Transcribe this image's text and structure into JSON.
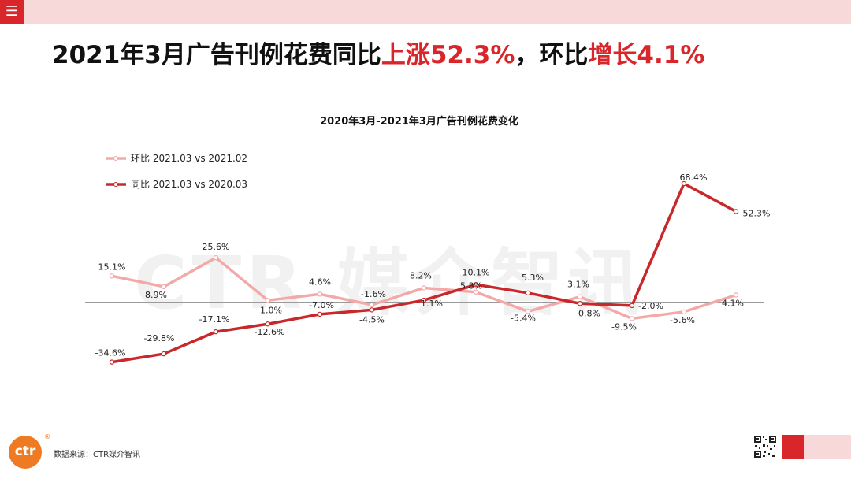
{
  "header": {
    "menu_icon": "hamburger-menu-icon",
    "menu_glyph": "☰"
  },
  "headline": {
    "part1": "2021年3月广告刊例花费同比",
    "part2": "上涨52.3%",
    "part3": "，环比",
    "part4": "增长4.1%"
  },
  "watermark": "CTR 媒介智讯",
  "footer": {
    "logo_text": "ctr",
    "logo_reg": "®",
    "source": "数据来源：CTR媒介智讯"
  },
  "colors": {
    "accent": "#d9262a",
    "mom_line": "#f4a9a9",
    "yoy_line": "#c8282a",
    "header_bar": "#f7d9d9"
  },
  "chart_data": {
    "type": "line",
    "title": "2020年3月-2021年3月广告刊例花费变化",
    "legend_position": "top-left",
    "grid": false,
    "x_points": 13,
    "ylim": [
      -40,
      75
    ],
    "series": [
      {
        "name": "环比 2021.03 vs 2021.02",
        "values": [
          15.1,
          8.9,
          25.6,
          1.0,
          4.6,
          -1.6,
          8.2,
          5.8,
          -5.4,
          3.1,
          -9.5,
          -5.6,
          4.1
        ],
        "labels": [
          "15.1%",
          "8.9%",
          "25.6%",
          "1.0%",
          "4.6%",
          "-1.6%",
          "8.2%",
          "5.8%",
          "-5.4%",
          "3.1%",
          "-9.5%",
          "-5.6%",
          "4.1%"
        ]
      },
      {
        "name": "同比 2021.03 vs 2020.03",
        "values": [
          -34.6,
          -29.8,
          -17.1,
          -12.6,
          -7.0,
          -4.5,
          1.1,
          10.1,
          5.3,
          -0.8,
          -2.0,
          68.4,
          52.3
        ],
        "labels": [
          "-34.6%",
          "-29.8%",
          "-17.1%",
          "-12.6%",
          "-7.0%",
          "-4.5%",
          "1.1%",
          "10.1%",
          "5.3%",
          "-0.8%",
          "-2.0%",
          "68.4%",
          "52.3%"
        ]
      }
    ]
  }
}
